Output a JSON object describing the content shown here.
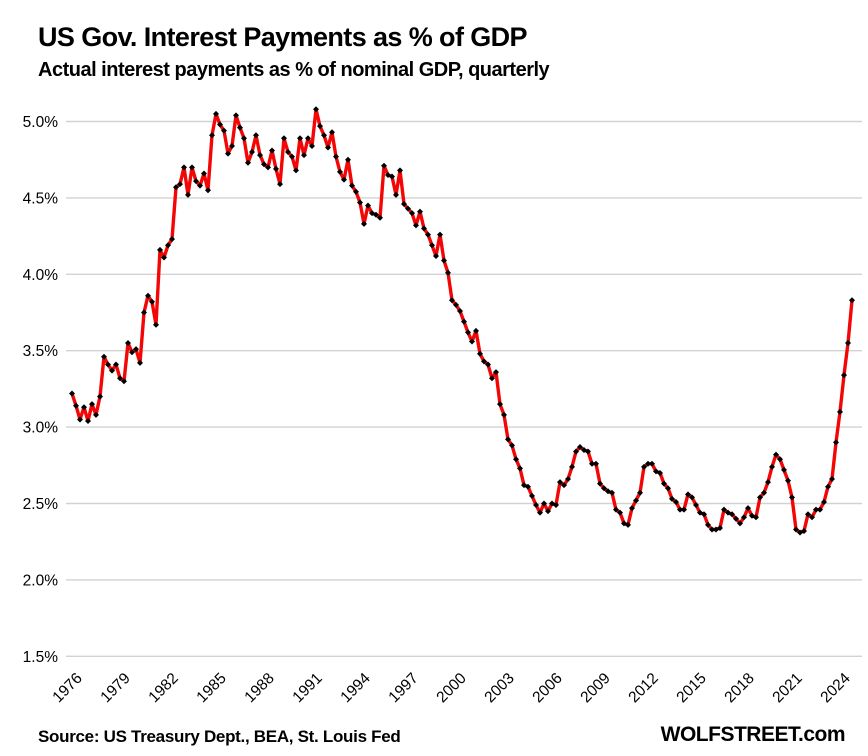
{
  "header": {
    "title": "US Gov. Interest Payments as % of GDP",
    "subtitle": "Actual interest payments as % of nominal GDP, quarterly"
  },
  "footer": {
    "source": "Source: US Treasury Dept., BEA, St. Louis Fed",
    "site": "WOLFSTREET.com"
  },
  "chart_data": {
    "type": "line",
    "title": "US Gov. Interest Payments as % of GDP",
    "subtitle": "Actual interest payments as % of nominal GDP, quarterly",
    "unit": "percent of nominal GDP",
    "frequency": "quarterly",
    "x_start": "1976 Q1",
    "x_end": "2024 Q4",
    "start_year": 1976,
    "x_tick_labels": [
      "1976",
      "1979",
      "1982",
      "1985",
      "1988",
      "1991",
      "1994",
      "1997",
      "2000",
      "2003",
      "2006",
      "2009",
      "2012",
      "2015",
      "2018",
      "2021",
      "2024"
    ],
    "y_tick_labels": [
      "5.0%",
      "4.5%",
      "4.0%",
      "3.5%",
      "3.0%",
      "2.5%",
      "2.0%",
      "1.5%"
    ],
    "ylim": [
      1.5,
      5.15
    ],
    "grid": "horizontal",
    "legend_position": "none",
    "line_color": "#f40606",
    "marker_color": "#000000",
    "marker_shape": "diamond",
    "grid_color": "#d2d2d2",
    "series": [
      {
        "name": "Interest payments as % of GDP",
        "values": [
          3.22,
          3.14,
          3.05,
          3.13,
          3.04,
          3.15,
          3.08,
          3.2,
          3.46,
          3.41,
          3.37,
          3.41,
          3.32,
          3.3,
          3.55,
          3.49,
          3.51,
          3.42,
          3.75,
          3.86,
          3.82,
          3.67,
          4.16,
          4.11,
          4.19,
          4.23,
          4.57,
          4.59,
          4.7,
          4.52,
          4.7,
          4.61,
          4.58,
          4.66,
          4.55,
          4.91,
          5.05,
          4.98,
          4.94,
          4.79,
          4.84,
          5.04,
          4.96,
          4.89,
          4.73,
          4.8,
          4.91,
          4.78,
          4.72,
          4.7,
          4.81,
          4.69,
          4.59,
          4.89,
          4.8,
          4.77,
          4.68,
          4.89,
          4.78,
          4.89,
          4.84,
          5.08,
          4.97,
          4.91,
          4.83,
          4.93,
          4.77,
          4.67,
          4.62,
          4.75,
          4.58,
          4.54,
          4.47,
          4.33,
          4.45,
          4.4,
          4.39,
          4.37,
          4.71,
          4.65,
          4.64,
          4.52,
          4.68,
          4.46,
          4.43,
          4.4,
          4.32,
          4.41,
          4.3,
          4.26,
          4.19,
          4.12,
          4.26,
          4.09,
          4.01,
          3.83,
          3.8,
          3.76,
          3.69,
          3.62,
          3.56,
          3.63,
          3.48,
          3.43,
          3.41,
          3.32,
          3.36,
          3.15,
          3.08,
          2.92,
          2.88,
          2.79,
          2.73,
          2.62,
          2.61,
          2.55,
          2.49,
          2.44,
          2.5,
          2.45,
          2.5,
          2.49,
          2.64,
          2.62,
          2.66,
          2.74,
          2.84,
          2.87,
          2.85,
          2.84,
          2.76,
          2.76,
          2.63,
          2.6,
          2.58,
          2.57,
          2.46,
          2.44,
          2.37,
          2.36,
          2.47,
          2.52,
          2.57,
          2.74,
          2.76,
          2.76,
          2.71,
          2.7,
          2.63,
          2.6,
          2.53,
          2.51,
          2.46,
          2.46,
          2.56,
          2.54,
          2.49,
          2.44,
          2.43,
          2.36,
          2.33,
          2.33,
          2.34,
          2.46,
          2.44,
          2.43,
          2.4,
          2.37,
          2.41,
          2.47,
          2.42,
          2.41,
          2.54,
          2.57,
          2.64,
          2.74,
          2.82,
          2.79,
          2.72,
          2.65,
          2.54,
          2.33,
          2.31,
          2.32,
          2.43,
          2.41,
          2.46,
          2.46,
          2.51,
          2.61,
          2.66,
          2.9,
          3.1,
          3.34,
          3.55,
          3.83
        ]
      }
    ]
  }
}
